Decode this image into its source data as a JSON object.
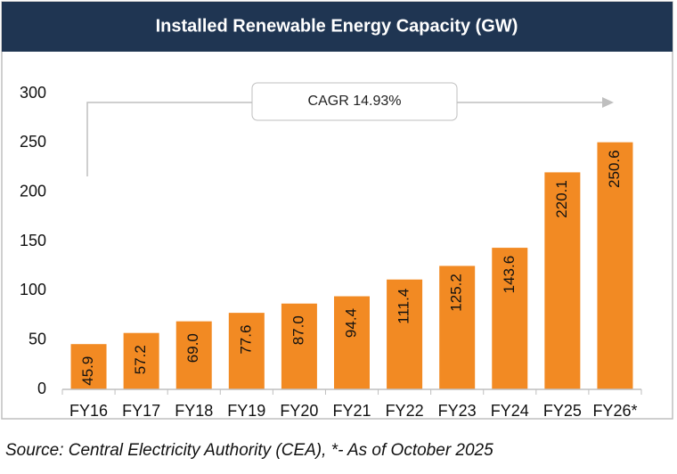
{
  "chart_data": {
    "type": "bar",
    "title": "Installed Renewable Energy Capacity (GW)",
    "categories": [
      "FY16",
      "FY17",
      "FY18",
      "FY19",
      "FY20",
      "FY21",
      "FY22",
      "FY23",
      "FY24",
      "FY25",
      "FY26*"
    ],
    "values": [
      45.9,
      57.2,
      69.0,
      77.6,
      87.0,
      94.4,
      111.4,
      125.2,
      143.6,
      220.1,
      250.6
    ],
    "value_labels": [
      "45.9",
      "57.2",
      "69.0",
      "77.6",
      "87.0",
      "94.4",
      "111.4",
      "125.2",
      "143.6",
      "220.1",
      "250.6"
    ],
    "color": "#f28a23",
    "ylim": [
      0,
      300
    ],
    "yticks": [
      0,
      50,
      100,
      150,
      200,
      250,
      300
    ],
    "annotation": "CAGR 14.93%"
  },
  "source": "Source: Central Electricity Authority (CEA), *- As of October 2025"
}
